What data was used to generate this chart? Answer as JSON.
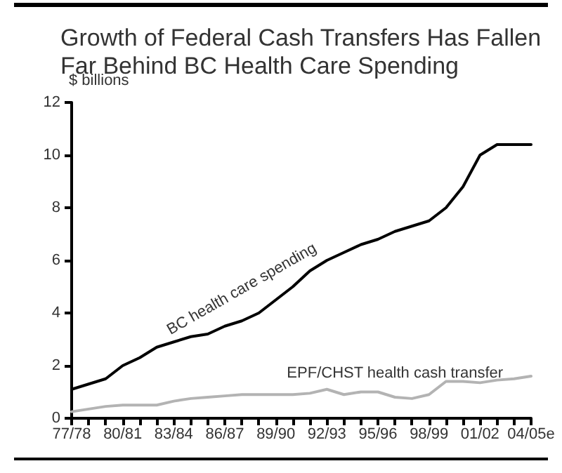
{
  "chart_data": {
    "type": "line",
    "title": "Growth of Federal Cash Transfers Has Fallen\nFar Behind BC Health Care Spending",
    "ylabel": "$ billions",
    "categories": [
      "77/78",
      null,
      null,
      "80/81",
      null,
      null,
      "83/84",
      null,
      null,
      "86/87",
      null,
      null,
      "89/90",
      null,
      null,
      "92/93",
      null,
      null,
      "95/96",
      null,
      null,
      "98/99",
      null,
      null,
      "01/02",
      null,
      null,
      "04/05e"
    ],
    "series": [
      {
        "name": "BC health care spending",
        "color": "#000000",
        "values": [
          1.1,
          1.3,
          1.5,
          2.0,
          2.3,
          2.7,
          2.9,
          3.1,
          3.2,
          3.5,
          3.7,
          4.0,
          4.5,
          5.0,
          5.6,
          6.0,
          6.3,
          6.6,
          6.8,
          7.1,
          7.3,
          7.5,
          8.0,
          8.8,
          10.0,
          10.4,
          10.4,
          10.4
        ]
      },
      {
        "name": "EPF/CHST health cash transfer",
        "color": "#b3b3b3",
        "values": [
          0.25,
          0.35,
          0.45,
          0.5,
          0.5,
          0.5,
          0.65,
          0.75,
          0.8,
          0.85,
          0.9,
          0.9,
          0.9,
          0.9,
          0.95,
          1.1,
          0.9,
          1.0,
          1.0,
          0.8,
          0.75,
          0.9,
          1.4,
          1.4,
          1.35,
          1.45,
          1.5,
          1.6
        ]
      }
    ],
    "ylim": [
      0,
      12
    ],
    "yticks": [
      0,
      2,
      4,
      6,
      8,
      10,
      12
    ],
    "grid": false,
    "legend": false,
    "marker": "none",
    "line_style": "solid"
  }
}
